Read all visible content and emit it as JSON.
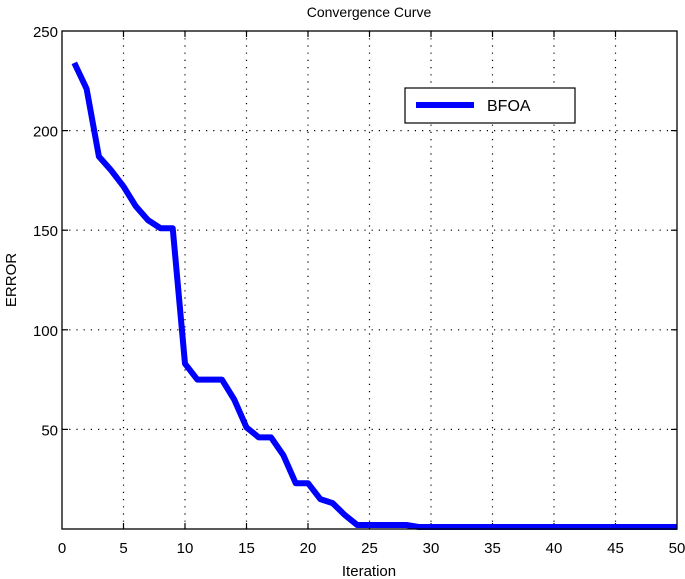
{
  "chart_data": {
    "type": "line",
    "title": "Convergence Curve",
    "xlabel": "Iteration",
    "ylabel": "ERROR",
    "xlim": [
      0,
      50
    ],
    "ylim": [
      0,
      250
    ],
    "xticks": [
      0,
      5,
      10,
      15,
      20,
      25,
      30,
      35,
      40,
      45,
      50
    ],
    "yticks": [
      50,
      100,
      150,
      200,
      250
    ],
    "grid": true,
    "legend_position": "upper right (inside)",
    "series": [
      {
        "name": "BFOA",
        "color": "#0000ff",
        "x": [
          1,
          2,
          3,
          4,
          5,
          6,
          7,
          8,
          9,
          10,
          11,
          12,
          13,
          14,
          15,
          16,
          17,
          18,
          19,
          20,
          21,
          22,
          23,
          24,
          25,
          26,
          27,
          28,
          29,
          30,
          31,
          32,
          33,
          34,
          35,
          36,
          37,
          38,
          39,
          40,
          41,
          42,
          43,
          44,
          45,
          46,
          47,
          48,
          49,
          50
        ],
        "values": [
          234,
          221,
          187,
          180,
          172,
          162,
          155,
          151,
          151,
          83,
          75,
          75,
          75,
          65,
          51,
          46,
          46,
          37,
          23,
          23,
          15,
          13,
          7,
          2,
          2,
          2,
          2,
          2,
          1,
          1,
          1,
          1,
          1,
          1,
          1,
          1,
          1,
          1,
          1,
          1,
          1,
          1,
          1,
          1,
          1,
          1,
          1,
          1,
          1,
          1
        ]
      }
    ]
  }
}
